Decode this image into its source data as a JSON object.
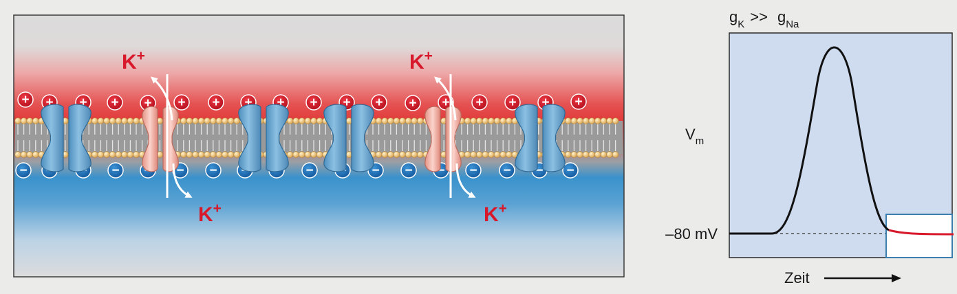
{
  "membrane_panel": {
    "ion_species": "K",
    "ion_charge": "+",
    "outside_charge_glyph": "+",
    "inside_charge_glyph": "−",
    "colors": {
      "outside": "#e03b3f",
      "inside": "#3b8fc9",
      "potassium_channel": "#f2b3ab",
      "other_channel": "#6aa6cf",
      "ion_label": "#d7192b",
      "cation": "#cc1021",
      "anion": "#1f73ba"
    }
  },
  "graph_panel": {
    "title": {
      "left_symbol": "g",
      "left_subscript": "K",
      "relation": ">>",
      "right_symbol": "g",
      "right_subscript": "Na"
    },
    "y_label": {
      "symbol": "V",
      "subscript": "m"
    },
    "resting_label": "–80 mV",
    "x_label": "Zeit",
    "colors": {
      "background": "#cfdcef",
      "trace": "#111111",
      "highlight_trace": "#d7192b",
      "highlight_box": "#3a7fae"
    }
  }
}
